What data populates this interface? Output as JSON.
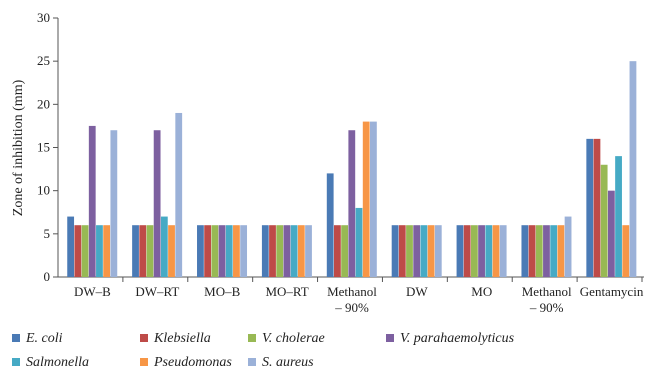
{
  "chart_data": {
    "type": "bar",
    "ylabel": "Zone of inhibition (mm)",
    "ylim": [
      0,
      30
    ],
    "yticks": [
      0,
      5,
      10,
      15,
      20,
      25,
      30
    ],
    "grid": false,
    "legend_position": "bottom",
    "categories": [
      [
        "DW–B"
      ],
      [
        "DW–RT"
      ],
      [
        "MO–B"
      ],
      [
        "MO–RT"
      ],
      [
        "Methanol",
        "– 90%"
      ],
      [
        "DW"
      ],
      [
        "MO"
      ],
      [
        "Methanol",
        "– 90%"
      ],
      [
        "Gentamycin"
      ]
    ],
    "series": [
      {
        "name": "E. coli",
        "color": "#4a7ab5",
        "values": [
          7,
          6,
          6,
          6,
          12,
          6,
          6,
          6,
          16
        ]
      },
      {
        "name": "Klebsiella",
        "color": "#be4b48",
        "values": [
          6,
          6,
          6,
          6,
          6,
          6,
          6,
          6,
          16
        ]
      },
      {
        "name": "V. cholerae",
        "color": "#98b954",
        "values": [
          6,
          6,
          6,
          6,
          6,
          6,
          6,
          6,
          13
        ]
      },
      {
        "name": "V. parahaemolyticus",
        "color": "#7d60a0",
        "values": [
          17.5,
          17,
          6,
          6,
          17,
          6,
          6,
          6,
          10
        ]
      },
      {
        "name": "Salmonella",
        "color": "#46aac5",
        "values": [
          6,
          7,
          6,
          6,
          8,
          6,
          6,
          6,
          14
        ]
      },
      {
        "name": "Pseudomonas",
        "color": "#f79646",
        "values": [
          6,
          6,
          6,
          6,
          18,
          6,
          6,
          6,
          6
        ]
      },
      {
        "name": "S. aureus",
        "color": "#9bb1d8",
        "values": [
          17,
          19,
          6,
          6,
          18,
          6,
          6,
          7,
          25
        ]
      }
    ]
  }
}
